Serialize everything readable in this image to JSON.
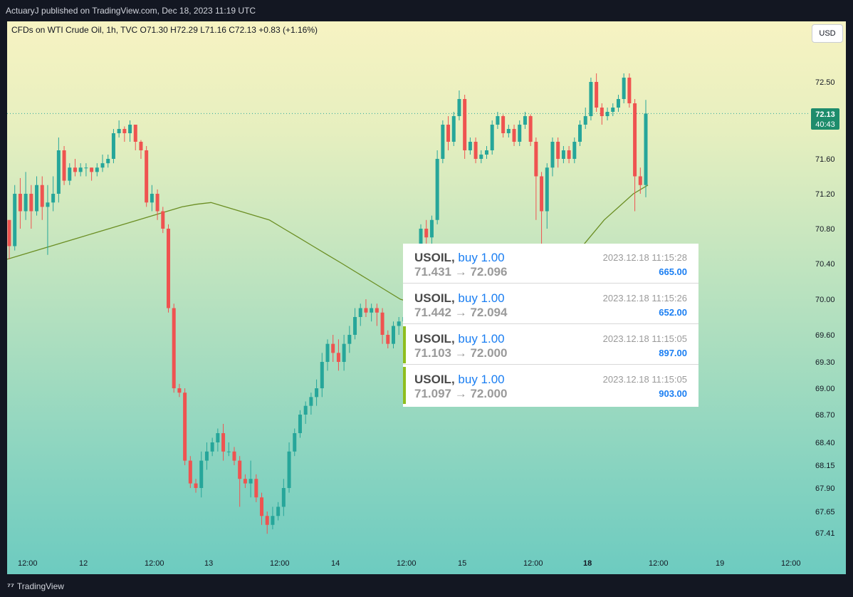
{
  "header": {
    "publisher": "ActuaryJ published on TradingView.com, Dec 18, 2023 11:19 UTC"
  },
  "symbol_info": "CFDs on WTI Crude Oil, 1h, TVC  O71.30  H72.29  L71.16  C72.13  +0.83 (+1.16%)",
  "currency": "USD",
  "last_price": {
    "price": "72.13",
    "countdown": "40:43"
  },
  "footer": {
    "logo": "TradingView"
  },
  "colors": {
    "up": "#26a69a",
    "down": "#ef5350",
    "ma": "#6b8e23",
    "last_price_line": "#26a69a",
    "badge": "#1e8c6c",
    "accent": "#1a7ef2"
  },
  "icons": {
    "logo": "tradingview-logo-icon"
  },
  "trades": [
    {
      "symbol": "USOIL,",
      "side": "buy 1.00",
      "open": "71.431",
      "close": "72.096",
      "time": "2023.12.18 11:15:28",
      "profit": "665.00",
      "marked": false
    },
    {
      "symbol": "USOIL,",
      "side": "buy 1.00",
      "open": "71.442",
      "close": "72.094",
      "time": "2023.12.18 11:15:26",
      "profit": "652.00",
      "marked": false
    },
    {
      "symbol": "USOIL,",
      "side": "buy 1.00",
      "open": "71.103",
      "close": "72.000",
      "time": "2023.12.18 11:15:05",
      "profit": "897.00",
      "marked": true
    },
    {
      "symbol": "USOIL,",
      "side": "buy 1.00",
      "open": "71.097",
      "close": "72.000",
      "time": "2023.12.18 11:15:05",
      "profit": "903.00",
      "marked": true
    }
  ],
  "chart_data": {
    "type": "candlestick",
    "y_ticks": [
      "72.50",
      "71.60",
      "71.20",
      "70.80",
      "70.40",
      "70.00",
      "69.60",
      "69.30",
      "69.00",
      "68.70",
      "68.40",
      "68.15",
      "67.90",
      "67.65",
      "67.41"
    ],
    "x_ticks": [
      {
        "label": "12:00",
        "bold": false
      },
      {
        "label": "12",
        "bold": false
      },
      {
        "label": "12:00",
        "bold": false
      },
      {
        "label": "13",
        "bold": false
      },
      {
        "label": "12:00",
        "bold": false
      },
      {
        "label": "14",
        "bold": false
      },
      {
        "label": "12:00",
        "bold": false
      },
      {
        "label": "15",
        "bold": false
      },
      {
        "label": "12:00",
        "bold": false
      },
      {
        "label": "18",
        "bold": true
      },
      {
        "label": "12:00",
        "bold": false
      },
      {
        "label": "19",
        "bold": false
      },
      {
        "label": "12:00",
        "bold": false
      }
    ],
    "last_price": 72.13,
    "candles": [
      [
        70.9,
        70.6,
        70.9,
        70.45
      ],
      [
        70.6,
        71.2,
        71.3,
        70.55
      ],
      [
        71.2,
        71.0,
        71.38,
        70.8
      ],
      [
        71.0,
        71.2,
        71.45,
        70.9
      ],
      [
        71.2,
        71.0,
        71.3,
        70.8
      ],
      [
        71.0,
        71.3,
        71.4,
        70.95
      ],
      [
        71.3,
        71.05,
        71.4,
        70.9
      ],
      [
        71.05,
        71.1,
        71.3,
        70.5
      ],
      [
        71.1,
        71.2,
        71.4,
        71.0
      ],
      [
        71.2,
        71.7,
        71.85,
        71.1
      ],
      [
        71.7,
        71.35,
        71.75,
        71.3
      ],
      [
        71.35,
        71.5,
        71.55,
        71.3
      ],
      [
        71.5,
        71.45,
        71.6,
        71.4
      ],
      [
        71.45,
        71.5,
        71.55,
        71.4
      ],
      [
        71.5,
        71.5,
        71.55,
        71.4
      ],
      [
        71.5,
        71.45,
        71.5,
        71.35
      ],
      [
        71.45,
        71.5,
        71.55,
        71.4
      ],
      [
        71.5,
        71.55,
        71.65,
        71.45
      ],
      [
        71.55,
        71.6,
        71.65,
        71.5
      ],
      [
        71.6,
        71.9,
        71.95,
        71.55
      ],
      [
        71.9,
        71.95,
        72.05,
        71.85
      ],
      [
        71.95,
        71.9,
        71.98,
        71.8
      ],
      [
        71.9,
        72.0,
        72.05,
        71.8
      ],
      [
        72.0,
        71.8,
        72.0,
        71.7
      ],
      [
        71.8,
        71.7,
        71.82,
        71.6
      ],
      [
        71.7,
        71.1,
        71.75,
        71.05
      ],
      [
        71.1,
        71.2,
        71.3,
        71.0
      ],
      [
        71.2,
        71.0,
        71.25,
        70.9
      ],
      [
        71.0,
        70.8,
        71.05,
        70.75
      ],
      [
        70.8,
        69.9,
        70.85,
        69.85
      ],
      [
        69.9,
        69.0,
        69.95,
        68.95
      ],
      [
        69.0,
        68.95,
        69.05,
        68.9
      ],
      [
        68.95,
        68.2,
        69.0,
        68.15
      ],
      [
        68.2,
        67.95,
        68.25,
        67.9
      ],
      [
        67.95,
        67.9,
        68.0,
        67.85
      ],
      [
        67.9,
        68.2,
        68.3,
        67.8
      ],
      [
        68.2,
        68.3,
        68.4,
        68.1
      ],
      [
        68.3,
        68.4,
        68.45,
        68.25
      ],
      [
        68.4,
        68.5,
        68.55,
        68.3
      ],
      [
        68.5,
        68.3,
        68.6,
        68.2
      ],
      [
        68.3,
        68.3,
        68.4,
        68.25
      ],
      [
        68.3,
        68.2,
        68.35,
        68.15
      ],
      [
        68.2,
        68.0,
        68.25,
        67.7
      ],
      [
        68.0,
        67.95,
        68.05,
        67.9
      ],
      [
        67.95,
        68.0,
        68.2,
        67.8
      ],
      [
        68.0,
        67.8,
        68.05,
        67.75
      ],
      [
        67.8,
        67.6,
        67.85,
        67.5
      ],
      [
        67.6,
        67.5,
        67.65,
        67.4
      ],
      [
        67.5,
        67.6,
        67.7,
        67.45
      ],
      [
        67.6,
        67.7,
        67.75,
        67.55
      ],
      [
        67.7,
        67.9,
        68.0,
        67.6
      ],
      [
        67.9,
        68.3,
        68.4,
        67.85
      ],
      [
        68.3,
        68.5,
        68.55,
        68.25
      ],
      [
        68.5,
        68.7,
        68.75,
        68.45
      ],
      [
        68.7,
        68.8,
        68.85,
        68.6
      ],
      [
        68.8,
        68.9,
        68.95,
        68.7
      ],
      [
        68.9,
        69.0,
        69.1,
        68.8
      ],
      [
        69.0,
        69.3,
        69.4,
        68.9
      ],
      [
        69.3,
        69.5,
        69.55,
        69.2
      ],
      [
        69.5,
        69.4,
        69.6,
        69.3
      ],
      [
        69.4,
        69.3,
        69.55,
        69.2
      ],
      [
        69.3,
        69.5,
        69.6,
        69.2
      ],
      [
        69.5,
        69.6,
        69.7,
        69.4
      ],
      [
        69.6,
        69.8,
        69.9,
        69.55
      ],
      [
        69.8,
        69.9,
        69.95,
        69.7
      ],
      [
        69.9,
        69.85,
        70.0,
        69.8
      ],
      [
        69.85,
        69.9,
        69.95,
        69.75
      ],
      [
        69.9,
        69.85,
        69.95,
        69.7
      ],
      [
        69.85,
        69.6,
        69.9,
        69.5
      ],
      [
        69.6,
        69.5,
        69.65,
        69.45
      ],
      [
        69.5,
        69.7,
        69.75,
        69.45
      ],
      [
        69.7,
        69.75,
        69.8,
        69.6
      ],
      [
        69.75,
        69.8,
        69.85,
        69.65
      ],
      [
        69.8,
        70.0,
        70.05,
        69.75
      ],
      [
        70.0,
        70.4,
        70.45,
        69.95
      ],
      [
        70.4,
        70.8,
        70.85,
        70.35
      ],
      [
        70.8,
        70.7,
        70.9,
        70.6
      ],
      [
        70.7,
        70.9,
        70.95,
        70.6
      ],
      [
        70.9,
        71.6,
        71.7,
        70.85
      ],
      [
        71.6,
        72.0,
        72.05,
        71.55
      ],
      [
        72.0,
        71.8,
        72.1,
        71.7
      ],
      [
        71.8,
        72.1,
        72.15,
        71.75
      ],
      [
        72.1,
        72.3,
        72.4,
        72.05
      ],
      [
        72.3,
        71.7,
        72.35,
        71.6
      ],
      [
        71.7,
        71.8,
        71.85,
        71.65
      ],
      [
        71.8,
        71.6,
        71.85,
        71.55
      ],
      [
        71.6,
        71.65,
        71.7,
        71.55
      ],
      [
        71.65,
        71.7,
        71.75,
        71.6
      ],
      [
        71.7,
        72.0,
        72.05,
        71.65
      ],
      [
        72.0,
        72.1,
        72.15,
        71.95
      ],
      [
        72.1,
        71.9,
        72.12,
        71.85
      ],
      [
        71.9,
        71.95,
        72.0,
        71.85
      ],
      [
        71.95,
        71.8,
        72.0,
        71.75
      ],
      [
        71.8,
        72.0,
        72.05,
        71.75
      ],
      [
        72.0,
        72.1,
        72.15,
        71.95
      ],
      [
        72.1,
        71.8,
        72.12,
        71.75
      ],
      [
        71.8,
        71.4,
        71.85,
        70.9
      ],
      [
        71.4,
        71.0,
        71.45,
        70.3
      ],
      [
        71.0,
        71.5,
        71.55,
        70.8
      ],
      [
        71.5,
        71.8,
        71.85,
        71.4
      ],
      [
        71.8,
        71.6,
        71.85,
        71.5
      ],
      [
        71.6,
        71.7,
        71.75,
        71.55
      ],
      [
        71.7,
        71.6,
        71.75,
        71.55
      ],
      [
        71.6,
        71.8,
        71.85,
        71.55
      ],
      [
        71.8,
        72.0,
        72.05,
        71.75
      ],
      [
        72.0,
        72.1,
        72.2,
        71.95
      ],
      [
        72.1,
        72.5,
        72.55,
        72.05
      ],
      [
        72.5,
        72.2,
        72.6,
        72.15
      ],
      [
        72.2,
        72.1,
        72.25,
        72.0
      ],
      [
        72.1,
        72.15,
        72.2,
        72.05
      ],
      [
        72.15,
        72.2,
        72.25,
        72.1
      ],
      [
        72.2,
        72.3,
        72.35,
        72.15
      ],
      [
        72.3,
        72.55,
        72.6,
        72.25
      ],
      [
        72.55,
        72.25,
        72.6,
        72.2
      ],
      [
        72.25,
        71.4,
        72.3,
        71.0
      ],
      [
        71.4,
        71.3,
        71.5,
        71.2
      ],
      [
        71.3,
        72.13,
        72.29,
        71.16
      ]
    ],
    "ma": [
      70.45,
      70.5,
      70.55,
      70.6,
      70.65,
      70.7,
      70.75,
      70.8,
      70.85,
      70.9,
      70.95,
      71.0,
      71.05,
      71.08,
      71.1,
      71.05,
      71.0,
      70.95,
      70.9,
      70.8,
      70.7,
      70.6,
      70.5,
      70.4,
      70.3,
      70.2,
      70.1,
      70.0,
      69.95,
      69.9,
      69.85,
      69.8,
      69.78,
      69.78,
      69.8,
      69.85,
      69.95,
      70.1,
      70.3,
      70.5,
      70.7,
      70.9,
      71.05,
      71.2,
      71.3
    ]
  }
}
